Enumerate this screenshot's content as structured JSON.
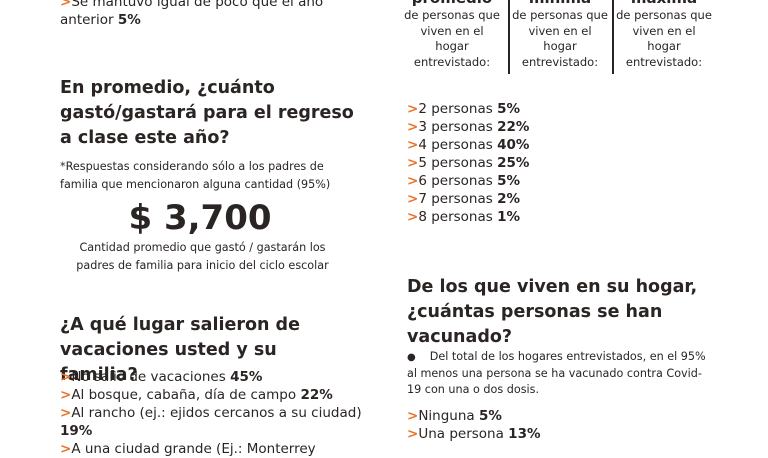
{
  "left": {
    "prev_item": {
      "label": "Se mantuvo igual de poco que el año anterior",
      "value": "5%"
    },
    "spending": {
      "heading": "En promedio, ¿cuánto gastó/gastará para el regreso a clase este año?",
      "note": "*Respuestas considerando sólo a los padres de familia que mencionaron alguna cantidad (95%)",
      "amount": "$ 3,700",
      "caption": "Cantidad promedio que gastó / gastarán los padres de familia para inicio del ciclo escolar"
    },
    "vacation": {
      "heading": "¿A qué lugar salieron de vacaciones usted y su familia?",
      "items": [
        {
          "label": "No salió de vacaciones",
          "value": "45%"
        },
        {
          "label": "Al bosque, cabaña, día de campo",
          "value": "22%"
        },
        {
          "label": "Al rancho (ej.: ejidos cercanos a su ciudad)",
          "value": "19%"
        },
        {
          "label": "A una ciudad grande (Ej.: Monterrey"
        }
      ]
    }
  },
  "right": {
    "household": {
      "columns": [
        {
          "title": "promedio",
          "text": "de personas que viven en el hogar entrevistado:"
        },
        {
          "title": "mínima",
          "text": "de personas que viven en el hogar entrevistado:"
        },
        {
          "title": "máxima",
          "text": "de personas que viven en el hogar entrevistado:"
        }
      ],
      "items": [
        {
          "label": "2 personas",
          "value": "5%"
        },
        {
          "label": "3 personas",
          "value": "22%"
        },
        {
          "label": "4 personas",
          "value": "40%"
        },
        {
          "label": "5 personas",
          "value": "25%"
        },
        {
          "label": "6 personas",
          "value": "5%"
        },
        {
          "label": "7 personas",
          "value": "2%"
        },
        {
          "label": "8 personas",
          "value": "1%"
        }
      ]
    },
    "vaccinated": {
      "heading": "De los que viven en su hogar, ¿cuántas personas se han vacunado?",
      "note": "Del total de los hogares entrevistados, en el 95% al menos una persona se ha vacunado contra Covid-19 con una o dos dosis.",
      "items": [
        {
          "label": "Ninguna",
          "value": "5%"
        },
        {
          "label": "Una persona",
          "value": "13%"
        }
      ]
    }
  }
}
